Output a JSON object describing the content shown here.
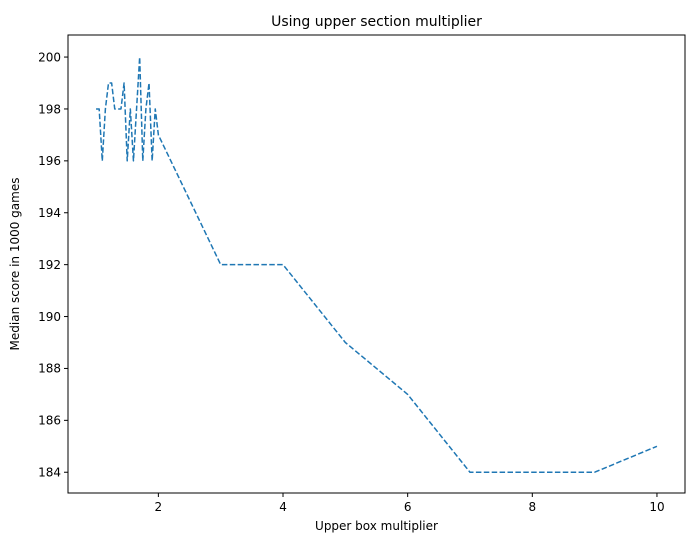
{
  "chart_data": {
    "type": "line",
    "title": "Using upper section multiplier",
    "xlabel": "Upper box multiplier",
    "ylabel": "Median score in 1000 games",
    "xlim": [
      0.55,
      10.45
    ],
    "ylim": [
      183.2,
      200.85
    ],
    "xticks": [
      2,
      4,
      6,
      8,
      10
    ],
    "yticks": [
      184,
      186,
      188,
      190,
      192,
      194,
      196,
      198,
      200
    ],
    "grid": false,
    "legend": "none",
    "series": [
      {
        "color": "#1f77b4",
        "linestyle": "dashed",
        "x": [
          1.0,
          1.05,
          1.1,
          1.15,
          1.2,
          1.25,
          1.3,
          1.35,
          1.4,
          1.45,
          1.5,
          1.55,
          1.6,
          1.65,
          1.7,
          1.75,
          1.8,
          1.85,
          1.9,
          1.95,
          2,
          3,
          4,
          5,
          6,
          7,
          8,
          9,
          10
        ],
        "y": [
          198,
          198,
          196,
          198,
          199,
          199,
          198,
          198,
          198,
          199,
          196,
          198,
          196,
          198,
          200,
          196,
          198,
          199,
          196,
          198,
          197,
          192,
          192,
          189,
          187,
          184,
          184,
          184,
          185
        ]
      }
    ]
  }
}
